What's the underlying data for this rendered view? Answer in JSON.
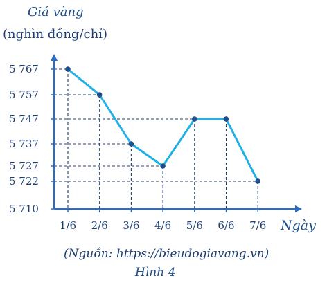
{
  "chart_data": {
    "type": "line",
    "title": "",
    "ylabel_line1": "Giá vàng",
    "ylabel_line2": "(nghìn đồng/chỉ)",
    "xlabel": "Ngày",
    "categories": [
      "1/6",
      "2/6",
      "3/6",
      "4/6",
      "5/6",
      "6/6",
      "7/6"
    ],
    "values": [
      5767,
      5757,
      5737,
      5727,
      5747,
      5747,
      5722
    ],
    "y_ticks": [
      5710,
      5722,
      5727,
      5737,
      5747,
      5757,
      5767
    ],
    "y_tick_labels": [
      "5 710",
      "5 722",
      "5 727",
      "5 737",
      "5 747",
      "5 757",
      "5 767"
    ],
    "ylim": [
      5710,
      5767
    ],
    "guide_lines": "dashed",
    "colors": {
      "axis": "#2b6cc4",
      "line": "#1fb0e6",
      "point": "#1f4e8c",
      "guide": "#1f3f73"
    }
  },
  "source": "(Nguồn: https://bieudogiavang.vn)",
  "figure_label": "Hình 4"
}
